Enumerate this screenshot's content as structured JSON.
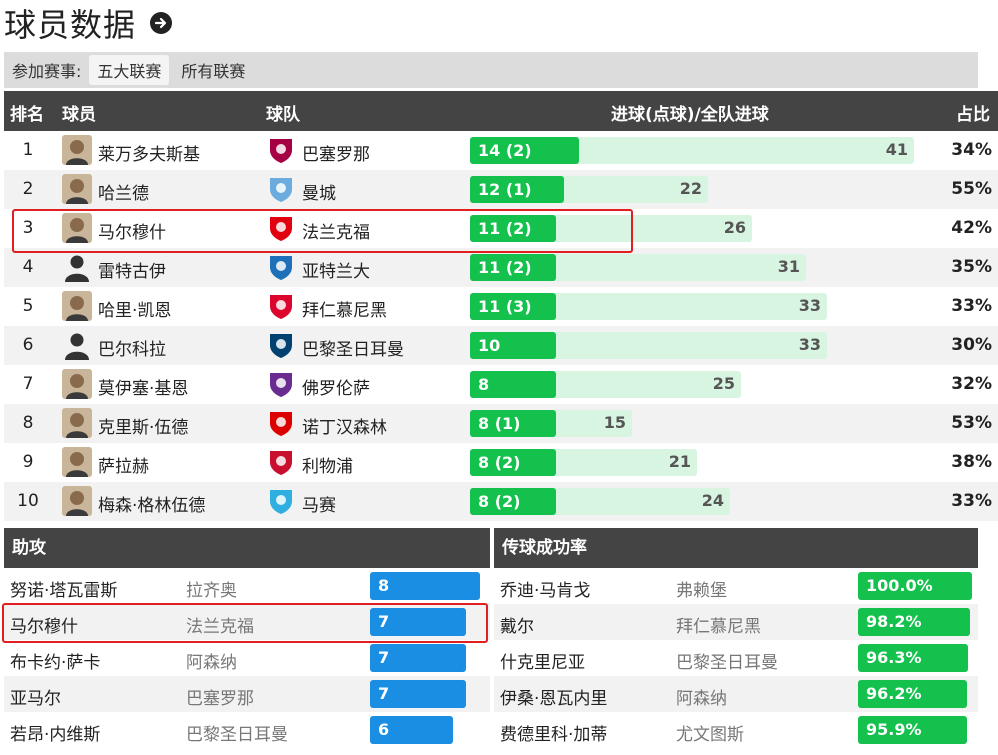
{
  "header": {
    "title": "球员数据"
  },
  "filter": {
    "label": "参加赛事:",
    "options": [
      "五大联赛",
      "所有联赛"
    ],
    "active": 0
  },
  "scorers": {
    "columns": {
      "rank": "排名",
      "player": "球员",
      "team": "球队",
      "goals": "进球(点球)/全队进球",
      "share": "占比"
    },
    "rows": [
      {
        "rank": "1",
        "player": "莱万多夫斯基",
        "team": "巴塞罗那",
        "goals_label": "14 (2)",
        "goals": 14,
        "team_goals": 41,
        "team_goals_label": "41",
        "share": "34%",
        "avatar": "player-photo",
        "club_icon": "barcelona-crest-icon",
        "club_color": "#a50044"
      },
      {
        "rank": "2",
        "player": "哈兰德",
        "team": "曼城",
        "goals_label": "12 (1)",
        "goals": 12,
        "team_goals": 22,
        "team_goals_label": "22",
        "share": "55%",
        "avatar": "player-photo",
        "club_icon": "man-city-crest-icon",
        "club_color": "#6cabdd"
      },
      {
        "rank": "3",
        "player": "马尔穆什",
        "team": "法兰克福",
        "goals_label": "11 (2)",
        "goals": 11,
        "team_goals": 26,
        "team_goals_label": "26",
        "share": "42%",
        "avatar": "player-photo",
        "club_icon": "frankfurt-crest-icon",
        "club_color": "#e1000f"
      },
      {
        "rank": "4",
        "player": "雷特古伊",
        "team": "亚特兰大",
        "goals_label": "11 (2)",
        "goals": 11,
        "team_goals": 31,
        "team_goals_label": "31",
        "share": "35%",
        "avatar": "silhouette",
        "club_icon": "atalanta-crest-icon",
        "club_color": "#1e71b8"
      },
      {
        "rank": "5",
        "player": "哈里·凯恩",
        "team": "拜仁慕尼黑",
        "goals_label": "11 (3)",
        "goals": 11,
        "team_goals": 33,
        "team_goals_label": "33",
        "share": "33%",
        "avatar": "player-photo",
        "club_icon": "bayern-crest-icon",
        "club_color": "#dc052d"
      },
      {
        "rank": "6",
        "player": "巴尔科拉",
        "team": "巴黎圣日耳曼",
        "goals_label": "10",
        "goals": 10,
        "team_goals": 33,
        "team_goals_label": "33",
        "share": "30%",
        "avatar": "silhouette",
        "club_icon": "psg-crest-icon",
        "club_color": "#004170"
      },
      {
        "rank": "7",
        "player": "莫伊塞·基恩",
        "team": "佛罗伦萨",
        "goals_label": "8",
        "goals": 8,
        "team_goals": 25,
        "team_goals_label": "25",
        "share": "32%",
        "avatar": "player-photo",
        "club_icon": "fiorentina-crest-icon",
        "club_color": "#6a2c91"
      },
      {
        "rank": "8",
        "player": "克里斯·伍德",
        "team": "诺丁汉森林",
        "goals_label": "8 (1)",
        "goals": 8,
        "team_goals": 15,
        "team_goals_label": "15",
        "share": "53%",
        "avatar": "player-photo",
        "club_icon": "forest-crest-icon",
        "club_color": "#dd0000"
      },
      {
        "rank": "9",
        "player": "萨拉赫",
        "team": "利物浦",
        "goals_label": "8 (2)",
        "goals": 8,
        "team_goals": 21,
        "team_goals_label": "21",
        "share": "38%",
        "avatar": "player-photo",
        "club_icon": "liverpool-crest-icon",
        "club_color": "#c8102e"
      },
      {
        "rank": "10",
        "player": "梅森·格林伍德",
        "team": "马赛",
        "goals_label": "8 (2)",
        "goals": 8,
        "team_goals": 24,
        "team_goals_label": "24",
        "share": "33%",
        "avatar": "player-photo",
        "club_icon": "marseille-crest-icon",
        "club_color": "#2faee0"
      }
    ]
  },
  "assists": {
    "title": "助攻",
    "rows": [
      {
        "player": "努诺·塔瓦雷斯",
        "team": "拉齐奥",
        "value": 8
      },
      {
        "player": "马尔穆什",
        "team": "法兰克福",
        "value": 7
      },
      {
        "player": "布卡约·萨卡",
        "team": "阿森纳",
        "value": 7
      },
      {
        "player": "亚马尔",
        "team": "巴塞罗那",
        "value": 7
      },
      {
        "player": "若昂·内维斯",
        "team": "巴黎圣日耳曼",
        "value": 6
      }
    ]
  },
  "passing": {
    "title": "传球成功率",
    "rows": [
      {
        "player": "乔迪·马肯戈",
        "team": "弗赖堡",
        "value": "100.0%",
        "pct": 100.0
      },
      {
        "player": "戴尔",
        "team": "拜仁慕尼黑",
        "value": "98.2%",
        "pct": 98.2
      },
      {
        "player": "什克里尼亚",
        "team": "巴黎圣日耳曼",
        "value": "96.3%",
        "pct": 96.3
      },
      {
        "player": "伊桑·恩瓦内里",
        "team": "阿森纳",
        "value": "96.2%",
        "pct": 96.2
      },
      {
        "player": "费德里科·加蒂",
        "team": "尤文图斯",
        "value": "95.9%",
        "pct": 95.9
      }
    ]
  },
  "colors": {
    "goals_bar": "#13c14c",
    "team_bar": "#d8f5e2",
    "assist_bar": "#1a8ee3",
    "highlight": "#e02020",
    "header_bg": "#444444"
  }
}
